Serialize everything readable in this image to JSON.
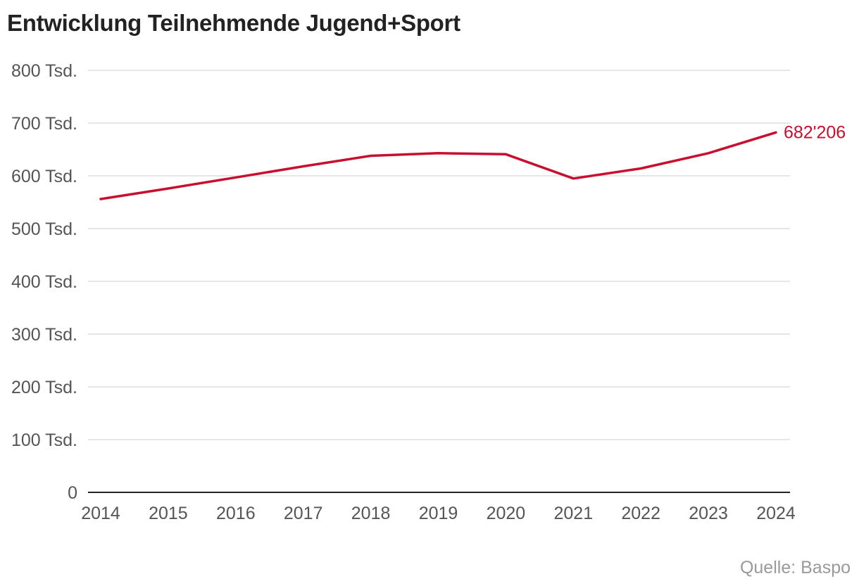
{
  "title": "Entwicklung Teilnehmende Jugend+Sport",
  "source": "Quelle: Baspo",
  "colors": {
    "line": "#c8102e",
    "grid": "#dddddd",
    "axis": "#222222",
    "text": "#555555",
    "source": "#9a9a9a"
  },
  "chart_data": {
    "type": "line",
    "title": "Entwicklung Teilnehmende Jugend+Sport",
    "xlabel": "",
    "ylabel": "",
    "categories": [
      "2014",
      "2015",
      "2016",
      "2017",
      "2018",
      "2019",
      "2020",
      "2021",
      "2022",
      "2023",
      "2024"
    ],
    "series": [
      {
        "values": [
          556000,
          576000,
          597000,
          618000,
          638000,
          643000,
          641000,
          595000,
          614000,
          643000,
          682206
        ]
      }
    ],
    "ylim": [
      0,
      800000
    ],
    "yticks": [
      0,
      100000,
      200000,
      300000,
      400000,
      500000,
      600000,
      700000,
      800000
    ],
    "ytick_labels": [
      "0",
      "100 Tsd.",
      "200 Tsd.",
      "300 Tsd.",
      "400 Tsd.",
      "500 Tsd.",
      "600 Tsd.",
      "700 Tsd.",
      "800 Tsd."
    ],
    "end_label": "682'206",
    "grid": true,
    "legend": "none"
  }
}
